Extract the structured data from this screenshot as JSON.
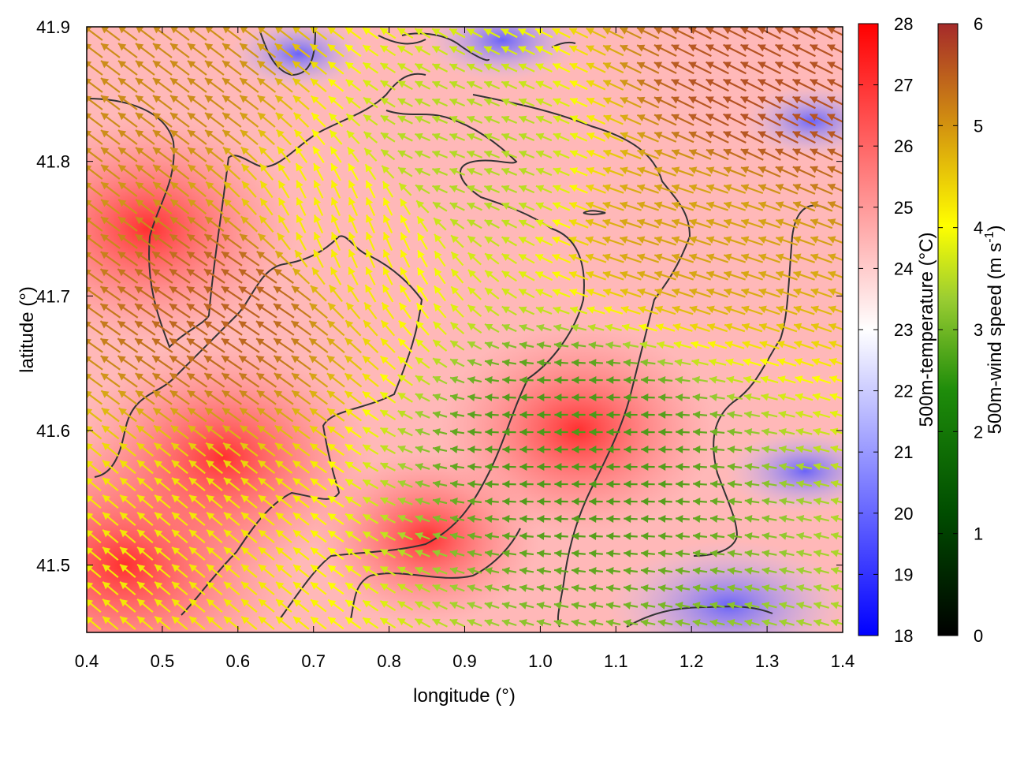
{
  "chart_data": {
    "type": "heatmap",
    "title": "",
    "xlabel": "longitude (°)",
    "ylabel": "latitude (°)",
    "xlim": [
      0.4,
      1.4
    ],
    "ylim": [
      41.45,
      41.9
    ],
    "x_ticks": [
      "0.4",
      "0.5",
      "0.6",
      "0.7",
      "0.8",
      "0.9",
      "1.0",
      "1.1",
      "1.2",
      "1.3",
      "1.4"
    ],
    "y_ticks": [
      "41.5",
      "41.6",
      "41.7",
      "41.8",
      "41.9"
    ],
    "temperature_field": {
      "label": "500m-temperature (°C)",
      "range": [
        18,
        28
      ],
      "ticks": [
        "18",
        "19",
        "20",
        "21",
        "22",
        "23",
        "24",
        "25",
        "26",
        "27",
        "28"
      ],
      "colormap": [
        "#0000ff",
        "#ffffff",
        "#ff0000"
      ],
      "hot_spots": [
        {
          "lon": 0.45,
          "lat": 41.5,
          "value": 27.5
        },
        {
          "lon": 0.48,
          "lat": 41.75,
          "value": 26.5
        },
        {
          "lon": 0.58,
          "lat": 41.58,
          "value": 26.5
        },
        {
          "lon": 1.05,
          "lat": 41.6,
          "value": 26.0
        },
        {
          "lon": 0.85,
          "lat": 41.52,
          "value": 25.0
        }
      ],
      "cool_spots": [
        {
          "lon": 1.25,
          "lat": 41.47,
          "value": 19.5
        },
        {
          "lon": 0.95,
          "lat": 41.89,
          "value": 21.5
        },
        {
          "lon": 1.35,
          "lat": 41.57,
          "value": 21.5
        },
        {
          "lon": 1.36,
          "lat": 41.83,
          "value": 22.0
        },
        {
          "lon": 0.68,
          "lat": 41.88,
          "value": 22.0
        }
      ]
    },
    "wind_field": {
      "label": "500m-wind speed (m s-1)",
      "label_main": "500m-wind speed (m s",
      "label_sup": "-1",
      "label_end": ")",
      "range": [
        0,
        6
      ],
      "ticks": [
        "0",
        "1",
        "2",
        "3",
        "4",
        "5",
        "6"
      ],
      "colormap": [
        "#000000",
        "#006400",
        "#9acd32",
        "#ffff00",
        "#d4a017",
        "#a52a2a"
      ],
      "sample_vectors": [
        {
          "lon": 0.5,
          "lat": 41.85,
          "u": -4.0,
          "v": 3.0
        },
        {
          "lon": 0.6,
          "lat": 41.7,
          "u": -4.5,
          "v": 3.0
        },
        {
          "lon": 0.75,
          "lat": 41.75,
          "u": -1.5,
          "v": 3.5
        },
        {
          "lon": 0.9,
          "lat": 41.8,
          "u": -2.5,
          "v": 1.0
        },
        {
          "lon": 1.05,
          "lat": 41.6,
          "u": -1.8,
          "v": 0.0
        },
        {
          "lon": 1.2,
          "lat": 41.75,
          "u": -4.5,
          "v": 1.5
        },
        {
          "lon": 1.3,
          "lat": 41.85,
          "u": -5.0,
          "v": 2.5
        },
        {
          "lon": 0.45,
          "lat": 41.5,
          "u": -3.0,
          "v": 2.5
        }
      ]
    },
    "contours": "terrain elevation lines",
    "grid": false,
    "legend": "colorbars right"
  }
}
